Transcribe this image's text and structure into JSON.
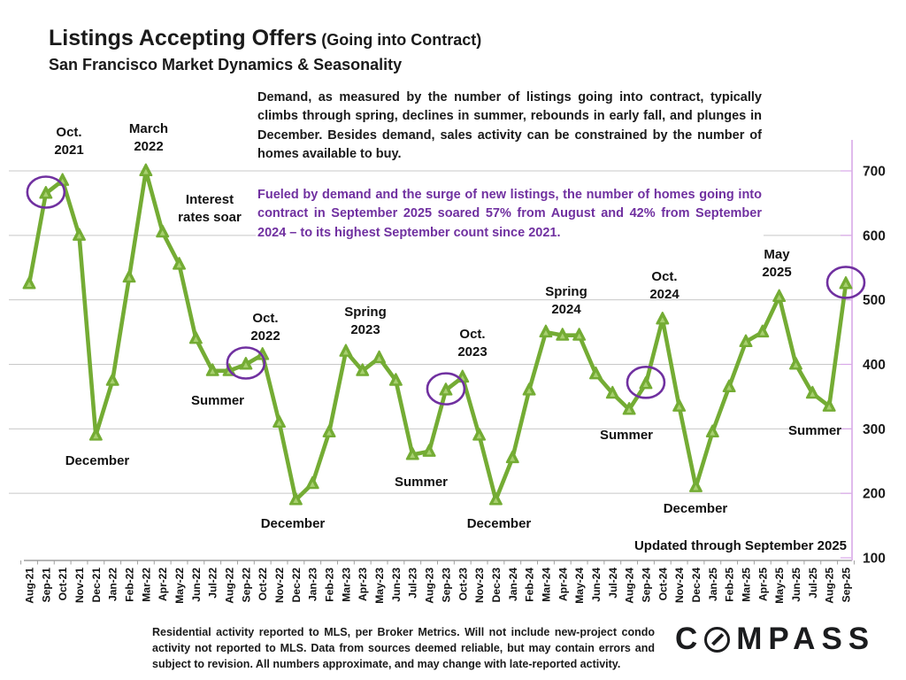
{
  "header": {
    "title": "Listings Accepting Offers",
    "title_suffix": " (Going into Contract)",
    "subtitle": "San Francisco Market Dynamics & Seasonality"
  },
  "paragraphs": {
    "demand": "Demand, as measured by the number of listings going into contract, typically climbs through spring, declines in summer, rebounds in early fall, and plunges in December.  Besides demand, sales activity can be constrained by the number of homes available to  buy.",
    "highlight": "Fueled by demand and the surge of new listings, the number of homes going into contract in September 2025 soared 57% from August and 42% from September 2024 – to its highest September count since 2021."
  },
  "chart_data": {
    "type": "line",
    "title": "Listings Accepting Offers (Going into Contract)",
    "x": [
      "Aug-21",
      "Sep-21",
      "Oct-21",
      "Nov-21",
      "Dec-21",
      "Jan-22",
      "Feb-22",
      "Mar-22",
      "Apr-22",
      "May-22",
      "Jun-22",
      "Jul-22",
      "Aug-22",
      "Sep-22",
      "Oct-22",
      "Nov-22",
      "Dec-22",
      "Jan-23",
      "Feb-23",
      "Mar-23",
      "Apr-23",
      "May-23",
      "Jun-23",
      "Jul-23",
      "Aug-23",
      "Sep-23",
      "Oct-23",
      "Nov-23",
      "Dec-23",
      "Jan-24",
      "Feb-24",
      "Mar-24",
      "Apr-24",
      "May-24",
      "Jun-24",
      "Jul-24",
      "Aug-24",
      "Sep-24",
      "Oct-24",
      "Nov-24",
      "Dec-24",
      "Jan-25",
      "Feb-25",
      "Mar-25",
      "Apr-25",
      "May-25",
      "Jun-25",
      "Jul-25",
      "Aug-25",
      "Sep-25"
    ],
    "series": [
      {
        "name": "Listings going into contract",
        "values": [
          525,
          665,
          685,
          600,
          290,
          375,
          535,
          700,
          605,
          555,
          440,
          390,
          390,
          400,
          415,
          310,
          190,
          215,
          295,
          420,
          390,
          410,
          375,
          260,
          265,
          360,
          380,
          290,
          190,
          255,
          360,
          450,
          445,
          445,
          385,
          355,
          330,
          370,
          470,
          335,
          210,
          295,
          365,
          435,
          450,
          505,
          400,
          355,
          335,
          525
        ]
      }
    ],
    "ylim": [
      100,
      700
    ],
    "yticks": [
      100,
      200,
      300,
      400,
      500,
      600,
      700
    ],
    "grid": true,
    "legend": "none",
    "line_color": "#74AC34",
    "marker_inner_color": "#a8d070",
    "grid_color": "#c8c8c8",
    "x_axis_color": "#9e9e9e",
    "y_axis_color": "#d8a8e8",
    "circle_color": "#7030A0",
    "circled_points": [
      "Sep-21",
      "Sep-22",
      "Sep-23",
      "Sep-24",
      "Sep-25"
    ],
    "annotations": [
      {
        "text": "Oct.\n2021",
        "x": 78,
        "y": 140,
        "align": "center"
      },
      {
        "text": "March\n2022",
        "x": 168,
        "y": 136,
        "align": "center"
      },
      {
        "text": "Interest\nrates soar",
        "x": 237,
        "y": 216,
        "align": "center"
      },
      {
        "text": "Oct.\n2022",
        "x": 300,
        "y": 350,
        "align": "center"
      },
      {
        "text": "Summer",
        "x": 246,
        "y": 443,
        "align": "center"
      },
      {
        "text": "December",
        "x": 110,
        "y": 511,
        "align": "center"
      },
      {
        "text": "Spring\n2023",
        "x": 413,
        "y": 343,
        "align": "center"
      },
      {
        "text": "December",
        "x": 331,
        "y": 582,
        "align": "center"
      },
      {
        "text": "Summer",
        "x": 476,
        "y": 535,
        "align": "center"
      },
      {
        "text": "Oct.\n2023",
        "x": 534,
        "y": 368,
        "align": "center"
      },
      {
        "text": "December",
        "x": 564,
        "y": 582,
        "align": "center"
      },
      {
        "text": "Spring\n2024",
        "x": 640,
        "y": 320,
        "align": "center"
      },
      {
        "text": "Summer",
        "x": 708,
        "y": 482,
        "align": "center"
      },
      {
        "text": "Oct.\n2024",
        "x": 751,
        "y": 303,
        "align": "center"
      },
      {
        "text": "December",
        "x": 786,
        "y": 565,
        "align": "center"
      },
      {
        "text": "May\n2025",
        "x": 878,
        "y": 278,
        "align": "center"
      },
      {
        "text": "Summer",
        "x": 921,
        "y": 477,
        "align": "center"
      },
      {
        "text": "Updated through September 2025",
        "x": 957,
        "y": 607,
        "align": "right"
      }
    ]
  },
  "footer": {
    "disclaimer": "Residential activity reported to MLS, per Broker Metrics. Will not include new-project condo activity not reported to MLS. Data from sources deemed reliable, but may contain errors and subject to revision. All numbers approximate, and may change with late-reported activity.",
    "logo_prefix": "C",
    "logo_suffix": "MPASS"
  }
}
